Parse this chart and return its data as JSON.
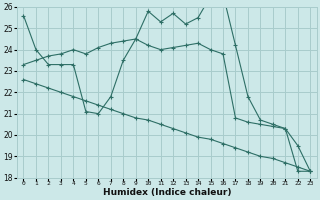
{
  "xlabel": "Humidex (Indice chaleur)",
  "x": [
    0,
    1,
    2,
    3,
    4,
    5,
    6,
    7,
    8,
    9,
    10,
    11,
    12,
    13,
    14,
    15,
    16,
    17,
    18,
    19,
    20,
    21,
    22,
    23
  ],
  "line1": [
    25.6,
    24.0,
    23.3,
    23.3,
    23.3,
    21.1,
    21.0,
    21.8,
    23.5,
    24.5,
    25.8,
    25.3,
    25.7,
    25.2,
    25.5,
    26.5,
    26.6,
    24.2,
    21.8,
    20.7,
    20.5,
    20.3,
    19.5,
    18.3
  ],
  "line2": [
    23.3,
    23.5,
    23.7,
    23.8,
    24.0,
    23.8,
    24.1,
    24.3,
    24.4,
    24.5,
    24.2,
    24.0,
    24.1,
    24.2,
    24.3,
    24.0,
    23.8,
    20.8,
    20.6,
    20.5,
    20.4,
    20.3,
    18.3,
    18.3
  ],
  "line3": [
    22.6,
    22.4,
    22.2,
    22.0,
    21.8,
    21.6,
    21.4,
    21.2,
    21.0,
    20.8,
    20.7,
    20.5,
    20.3,
    20.1,
    19.9,
    19.8,
    19.6,
    19.4,
    19.2,
    19.0,
    18.9,
    18.7,
    18.5,
    18.3
  ],
  "line_color": "#2d6e65",
  "bg_color": "#cce8e8",
  "grid_color": "#a8cccc",
  "ylim": [
    18,
    26
  ],
  "xlim": [
    -0.5,
    23.5
  ],
  "yticks": [
    18,
    19,
    20,
    21,
    22,
    23,
    24,
    25,
    26
  ],
  "xticks": [
    0,
    1,
    2,
    3,
    4,
    5,
    6,
    7,
    8,
    9,
    10,
    11,
    12,
    13,
    14,
    15,
    16,
    17,
    18,
    19,
    20,
    21,
    22,
    23
  ]
}
